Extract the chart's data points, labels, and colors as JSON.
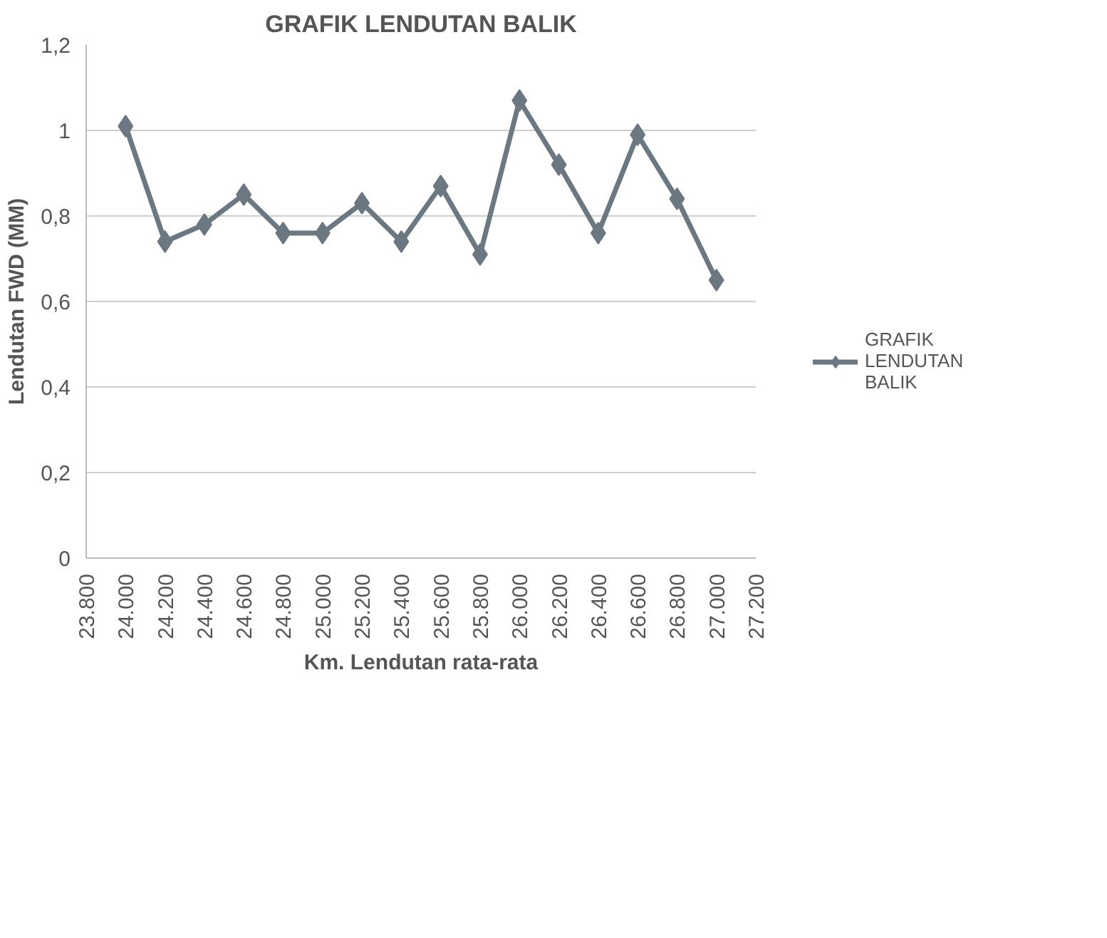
{
  "chart_data": {
    "type": "line",
    "title": "GRAFIK LENDUTAN BALIK",
    "xlabel": "Km. Lendutan rata-rata",
    "ylabel": "Lendutan FWD (MM)",
    "x": [
      24000,
      24200,
      24400,
      24600,
      24800,
      25000,
      25200,
      25400,
      25600,
      25800,
      26000,
      26200,
      26400,
      26600,
      26800,
      27000
    ],
    "series": [
      {
        "name": "GRAFIK LENDUTAN BALIK",
        "color": "#6b7781",
        "values": [
          1.01,
          0.74,
          0.78,
          0.85,
          0.76,
          0.76,
          0.83,
          0.74,
          0.87,
          0.71,
          1.07,
          0.92,
          0.76,
          0.99,
          0.84,
          0.65
        ]
      }
    ],
    "xlim": [
      23800,
      27200
    ],
    "xticks": [
      {
        "value": 23800,
        "label": "23.800"
      },
      {
        "value": 24000,
        "label": "24.000"
      },
      {
        "value": 24200,
        "label": "24.200"
      },
      {
        "value": 24400,
        "label": "24.400"
      },
      {
        "value": 24600,
        "label": "24.600"
      },
      {
        "value": 24800,
        "label": "24.800"
      },
      {
        "value": 25000,
        "label": "25.000"
      },
      {
        "value": 25200,
        "label": "25.200"
      },
      {
        "value": 25400,
        "label": "25.400"
      },
      {
        "value": 25600,
        "label": "25.600"
      },
      {
        "value": 25800,
        "label": "25.800"
      },
      {
        "value": 26000,
        "label": "26.000"
      },
      {
        "value": 26200,
        "label": "26.200"
      },
      {
        "value": 26400,
        "label": "26.400"
      },
      {
        "value": 26600,
        "label": "26.600"
      },
      {
        "value": 26800,
        "label": "26.800"
      },
      {
        "value": 27000,
        "label": "27.000"
      },
      {
        "value": 27200,
        "label": "27.200"
      }
    ],
    "ylim": [
      0,
      1.2
    ],
    "yticks": [
      0,
      {
        "value": 0.2,
        "label": "0,2"
      },
      {
        "value": 0.4,
        "label": "0,4"
      },
      {
        "value": 0.6,
        "label": "0,6"
      },
      {
        "value": 0.8,
        "label": "0,8"
      },
      1,
      {
        "value": 1.2,
        "label": "1,2"
      }
    ],
    "grid": "y",
    "legend": "right",
    "marker": "diamond",
    "line_style": "solid"
  }
}
